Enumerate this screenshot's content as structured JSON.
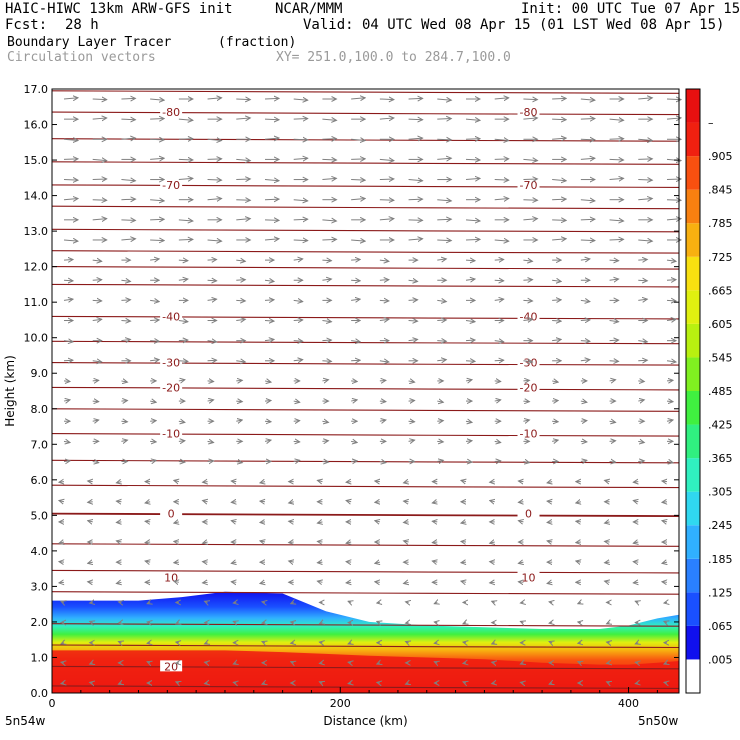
{
  "header": {
    "model": "HAIC-HIWC 13km ARW-GFS init",
    "org": "NCAR/MMM",
    "init": "Init: 00 UTC Tue 07 Apr 15",
    "fcst_label": "Fcst:",
    "fcst_value": "28 h",
    "valid": "Valid: 04 UTC Wed 08 Apr 15 (01 LST Wed 08 Apr 15)",
    "field": "Boundary Layer Tracer",
    "field_units": "(fraction)",
    "vectors": "Circulation vectors",
    "xy": "XY= 251.0,100.0 to 284.7,100.0"
  },
  "axes": {
    "ylabel": "Height (km)",
    "xlabel": "Distance (km)",
    "x_left_label": "5n54w",
    "x_right_label": "5n50w"
  },
  "chart_data": {
    "type": "heatmap",
    "title": "Boundary Layer Tracer",
    "units": "(fraction)",
    "xlabel": "Distance (km)",
    "ylabel": "Height (km)",
    "xlim": [
      0,
      435
    ],
    "ylim": [
      0,
      17
    ],
    "x_ticks": [
      0,
      200,
      400
    ],
    "y_ticks": [
      "0.0",
      "1.0",
      "2.0",
      "3.0",
      "4.0",
      "5.0",
      "6.0",
      "7.0",
      "8.0",
      "9.0",
      "10.0",
      "11.0",
      "12.0",
      "13.0",
      "14.0",
      "15.0",
      "16.0",
      "17.0"
    ],
    "colorbar": {
      "labels": [
        ".005",
        ".065",
        ".125",
        ".185",
        ".245",
        ".305",
        ".365",
        ".425",
        ".485",
        ".545",
        ".605",
        ".665",
        ".725",
        ".785",
        ".845",
        ".905",
        "–"
      ],
      "colors": [
        "#ffffff",
        "#1010ee",
        "#1a50ff",
        "#2a80ff",
        "#30b0ff",
        "#30d8f0",
        "#30f0c0",
        "#30f080",
        "#40f040",
        "#80f020",
        "#b8f010",
        "#e0f010",
        "#f8e010",
        "#f8b010",
        "#f88010",
        "#f85010",
        "#f02010",
        "#e81010"
      ]
    },
    "tracer_profile": {
      "x": [
        0,
        60,
        90,
        120,
        160,
        190,
        220,
        260,
        300,
        340,
        380,
        400,
        420,
        435
      ],
      "top_height": [
        2.6,
        2.6,
        2.7,
        2.85,
        2.8,
        2.3,
        2.0,
        1.9,
        1.85,
        1.8,
        1.8,
        1.9,
        2.1,
        2.2
      ],
      "red_top_height": [
        1.2,
        1.2,
        1.2,
        1.2,
        1.15,
        1.1,
        1.05,
        1.0,
        0.95,
        0.85,
        0.8,
        0.8,
        0.85,
        0.9
      ]
    },
    "temperature_contours": {
      "labeled_values": [
        "-80",
        "-70",
        "-40",
        "-30",
        "-20",
        "-10",
        "0",
        "10",
        "20"
      ]
    }
  }
}
